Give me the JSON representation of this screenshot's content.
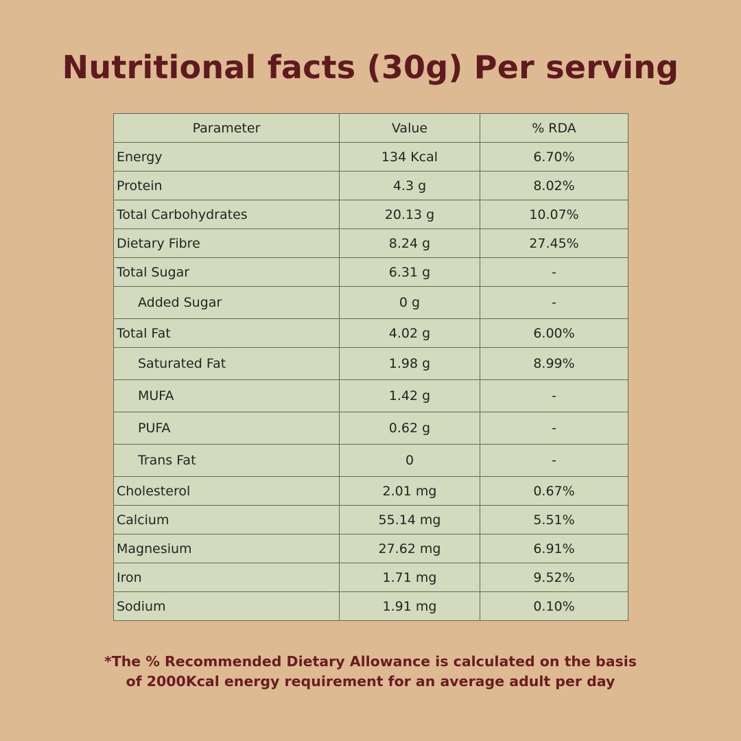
{
  "title": "Nutritional facts (30g) Per serving",
  "table": {
    "headers": [
      "Parameter",
      "Value",
      "% RDA"
    ],
    "rows": [
      {
        "parameter": "Energy",
        "value": "134 Kcal",
        "rda": "6.70%",
        "indent": false
      },
      {
        "parameter": "Protein",
        "value": "4.3 g",
        "rda": "8.02%",
        "indent": false
      },
      {
        "parameter": "Total Carbohydrates",
        "value": "20.13 g",
        "rda": "10.07%",
        "indent": false
      },
      {
        "parameter": "Dietary Fibre",
        "value": "8.24 g",
        "rda": "27.45%",
        "indent": false
      },
      {
        "parameter": "Total Sugar",
        "value": "6.31 g",
        "rda": "-",
        "indent": false
      },
      {
        "parameter": "Added Sugar",
        "value": "0 g",
        "rda": "-",
        "indent": true
      },
      {
        "parameter": "Total Fat",
        "value": "4.02 g",
        "rda": "6.00%",
        "indent": false
      },
      {
        "parameter": "Saturated Fat",
        "value": "1.98 g",
        "rda": "8.99%",
        "indent": true
      },
      {
        "parameter": "MUFA",
        "value": "1.42 g",
        "rda": "-",
        "indent": true
      },
      {
        "parameter": "PUFA",
        "value": "0.62 g",
        "rda": "-",
        "indent": true
      },
      {
        "parameter": "Trans Fat",
        "value": "0",
        "rda": "-",
        "indent": true
      },
      {
        "parameter": "Cholesterol",
        "value": "2.01 mg",
        "rda": "0.67%",
        "indent": false
      },
      {
        "parameter": "Calcium",
        "value": "55.14 mg",
        "rda": "5.51%",
        "indent": false
      },
      {
        "parameter": "Magnesium",
        "value": "27.62 mg",
        "rda": "6.91%",
        "indent": false
      },
      {
        "parameter": "Iron",
        "value": "1.71 mg",
        "rda": "9.52%",
        "indent": false
      },
      {
        "parameter": "Sodium",
        "value": "1.91 mg",
        "rda": "0.10%",
        "indent": false
      }
    ]
  },
  "footnote": {
    "line1": "*The % Recommended Dietary Allowance is calculated on the basis",
    "line2": "of 2000Kcal energy requirement for an average adult per day"
  },
  "colors": {
    "background": "#ddba92",
    "title": "#5e1a1f",
    "table_bg": "#d4dabd",
    "footnote": "#6b1c22"
  }
}
